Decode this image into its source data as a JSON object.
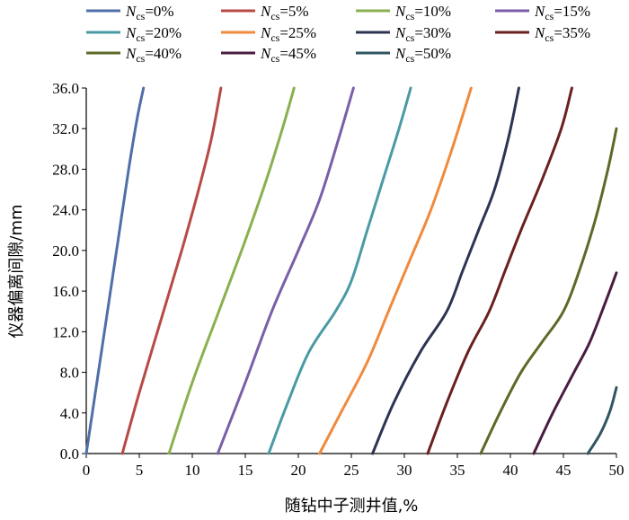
{
  "chart_data": {
    "type": "line",
    "xlabel": "随钻中子测井值,%",
    "ylabel": "仪器偏离间隙/mm",
    "xlim": [
      0,
      50
    ],
    "ylim": [
      0,
      36
    ],
    "x_ticks": [
      "0",
      "5",
      "10",
      "15",
      "20",
      "25",
      "30",
      "35",
      "40",
      "45",
      "50"
    ],
    "y_ticks": [
      "0.0",
      "4.0",
      "8.0",
      "12.0",
      "16.0",
      "20.0",
      "24.0",
      "28.0",
      "32.0",
      "36.0"
    ],
    "grid": false,
    "legend_position": "top",
    "series": [
      {
        "name": "Ncs=0%",
        "legend_sub": "cs",
        "legend_value": "=0%",
        "color": "#4f6fa8",
        "points": [
          [
            0,
            0
          ],
          [
            1,
            7
          ],
          [
            2,
            14
          ],
          [
            3,
            21
          ],
          [
            4,
            28
          ],
          [
            4.8,
            33
          ],
          [
            5.4,
            36
          ]
        ]
      },
      {
        "name": "Ncs=5%",
        "legend_sub": "cs",
        "legend_value": "=5%",
        "color": "#b84a45",
        "points": [
          [
            3.4,
            0
          ],
          [
            5,
            6
          ],
          [
            7,
            13
          ],
          [
            9,
            20
          ],
          [
            10.6,
            26
          ],
          [
            11.8,
            31
          ],
          [
            12.7,
            36
          ]
        ]
      },
      {
        "name": "Ncs=10%",
        "legend_sub": "cs",
        "legend_value": "=10%",
        "color": "#8ab050",
        "points": [
          [
            7.8,
            0
          ],
          [
            10,
            7
          ],
          [
            12.5,
            14
          ],
          [
            15,
            21
          ],
          [
            17,
            27
          ],
          [
            18.5,
            32
          ],
          [
            19.6,
            36
          ]
        ]
      },
      {
        "name": "Ncs=15%",
        "legend_sub": "cs",
        "legend_value": "=15%",
        "color": "#7b5ea8",
        "points": [
          [
            12.4,
            0
          ],
          [
            15,
            7
          ],
          [
            17.5,
            14
          ],
          [
            20,
            20
          ],
          [
            22,
            25
          ],
          [
            23.8,
            31
          ],
          [
            25.2,
            36
          ]
        ]
      },
      {
        "name": "Ncs=20%",
        "legend_sub": "cs",
        "legend_value": "=20%",
        "color": "#4a9aa4",
        "points": [
          [
            17.2,
            0
          ],
          [
            19,
            5
          ],
          [
            21,
            10
          ],
          [
            23.5,
            14
          ],
          [
            25,
            17
          ],
          [
            26.5,
            22
          ],
          [
            28,
            27
          ],
          [
            29.5,
            32
          ],
          [
            30.6,
            36
          ]
        ]
      },
      {
        "name": "Ncs=25%",
        "legend_sub": "cs",
        "legend_value": "=25%",
        "color": "#f08a3c",
        "points": [
          [
            22,
            0
          ],
          [
            24,
            4
          ],
          [
            26.5,
            9
          ],
          [
            28.5,
            14
          ],
          [
            30.5,
            19
          ],
          [
            32.5,
            24
          ],
          [
            34.5,
            30
          ],
          [
            36.3,
            36
          ]
        ]
      },
      {
        "name": "Ncs=30%",
        "legend_sub": "cs",
        "legend_value": "=30%",
        "color": "#2c3452",
        "points": [
          [
            27,
            0
          ],
          [
            29,
            5
          ],
          [
            31.5,
            10
          ],
          [
            34,
            14
          ],
          [
            35.5,
            18
          ],
          [
            37,
            22
          ],
          [
            38.5,
            26
          ],
          [
            39.8,
            31
          ],
          [
            40.8,
            36
          ]
        ]
      },
      {
        "name": "Ncs=35%",
        "legend_sub": "cs",
        "legend_value": "=35%",
        "color": "#6b1f1f",
        "points": [
          [
            32.2,
            0
          ],
          [
            34,
            5
          ],
          [
            36,
            10
          ],
          [
            38,
            14
          ],
          [
            39.5,
            18
          ],
          [
            41,
            22
          ],
          [
            43,
            27
          ],
          [
            44.8,
            32
          ],
          [
            45.8,
            36
          ]
        ]
      },
      {
        "name": "Ncs=40%",
        "legend_sub": "cs",
        "legend_value": "=40%",
        "color": "#5b6a28",
        "points": [
          [
            37.2,
            0
          ],
          [
            39,
            4
          ],
          [
            41,
            8
          ],
          [
            43,
            11
          ],
          [
            45,
            14
          ],
          [
            46.5,
            18
          ],
          [
            48,
            23
          ],
          [
            49.2,
            28
          ],
          [
            50,
            32
          ]
        ]
      },
      {
        "name": "Ncs=45%",
        "legend_sub": "cs",
        "legend_value": "=45%",
        "color": "#4a1d40",
        "points": [
          [
            42.2,
            0
          ],
          [
            44,
            4
          ],
          [
            46,
            8
          ],
          [
            47.5,
            11
          ],
          [
            49,
            15
          ],
          [
            50,
            17.8
          ]
        ]
      },
      {
        "name": "Ncs=50%",
        "legend_sub": "cs",
        "legend_value": "=50%",
        "color": "#2f5661",
        "points": [
          [
            47.3,
            0
          ],
          [
            48.5,
            2
          ],
          [
            49.4,
            4.2
          ],
          [
            50,
            6.5
          ]
        ]
      }
    ]
  }
}
